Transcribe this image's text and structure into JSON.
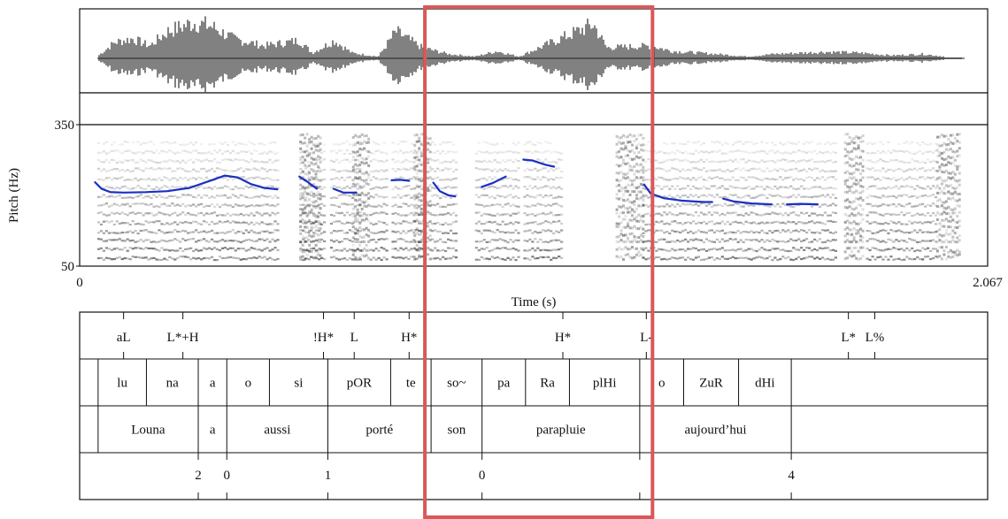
{
  "axes": {
    "pitch_label": "Pitch (Hz)",
    "pitch_max": "350",
    "pitch_min": "50",
    "time_label": "Time (s)",
    "time_start": "0",
    "time_end": "2.067"
  },
  "tones": [
    {
      "label": "aL",
      "t": 0.1
    },
    {
      "label": "L*+H",
      "t": 0.235
    },
    {
      "label": "!H*",
      "t": 0.555
    },
    {
      "label": "L",
      "t": 0.625
    },
    {
      "label": "H*",
      "t": 0.75
    },
    {
      "label": "H*",
      "t": 1.1
    },
    {
      "label": "L-",
      "t": 1.29
    },
    {
      "label": "L*",
      "t": 1.75
    },
    {
      "label": "L%",
      "t": 1.81
    }
  ],
  "syllables": [
    {
      "label": "lu",
      "start": 0.042,
      "end": 0.152
    },
    {
      "label": "na",
      "start": 0.152,
      "end": 0.27
    },
    {
      "label": "a",
      "start": 0.27,
      "end": 0.335
    },
    {
      "label": "o",
      "start": 0.335,
      "end": 0.432
    },
    {
      "label": "si",
      "start": 0.432,
      "end": 0.565
    },
    {
      "label": "pOR",
      "start": 0.565,
      "end": 0.708
    },
    {
      "label": "te",
      "start": 0.708,
      "end": 0.8
    },
    {
      "label": "so~",
      "start": 0.8,
      "end": 0.916
    },
    {
      "label": "pa",
      "start": 0.916,
      "end": 1.015
    },
    {
      "label": "Ra",
      "start": 1.015,
      "end": 1.115
    },
    {
      "label": "plHi",
      "start": 1.115,
      "end": 1.275
    },
    {
      "label": "o",
      "start": 1.275,
      "end": 1.375
    },
    {
      "label": "ZuR",
      "start": 1.375,
      "end": 1.5
    },
    {
      "label": "dHi",
      "start": 1.5,
      "end": 1.62
    }
  ],
  "words": [
    {
      "label": "Louna",
      "start": 0.042,
      "end": 0.27
    },
    {
      "label": "a",
      "start": 0.27,
      "end": 0.335
    },
    {
      "label": "aussi",
      "start": 0.335,
      "end": 0.565
    },
    {
      "label": "porté",
      "start": 0.565,
      "end": 0.8
    },
    {
      "label": "son",
      "start": 0.8,
      "end": 0.916
    },
    {
      "label": "parapluie",
      "start": 0.916,
      "end": 1.275
    },
    {
      "label": "aujourd’hui",
      "start": 1.275,
      "end": 1.62
    }
  ],
  "breaks": [
    {
      "label": "2",
      "t": 0.27
    },
    {
      "label": "0",
      "t": 0.335
    },
    {
      "label": "1",
      "t": 0.565
    },
    {
      "label": "0",
      "t": 0.916
    },
    {
      "label": "",
      "t": 1.275
    },
    {
      "label": "4",
      "t": 1.62
    }
  ],
  "pitch_segments": [
    [
      [
        0.035,
        228
      ],
      [
        0.05,
        214
      ],
      [
        0.07,
        207
      ],
      [
        0.1,
        206
      ],
      [
        0.15,
        207
      ],
      [
        0.2,
        209
      ],
      [
        0.25,
        216
      ],
      [
        0.3,
        232
      ],
      [
        0.33,
        242
      ],
      [
        0.36,
        238
      ],
      [
        0.39,
        224
      ],
      [
        0.42,
        216
      ],
      [
        0.45,
        213
      ]
    ],
    [
      [
        0.5,
        240
      ],
      [
        0.52,
        228
      ],
      [
        0.54,
        214
      ]
    ],
    [
      [
        0.578,
        214
      ],
      [
        0.6,
        206
      ],
      [
        0.63,
        206
      ]
    ],
    [
      [
        0.71,
        232
      ],
      [
        0.73,
        233
      ],
      [
        0.75,
        231
      ]
    ],
    [
      [
        0.805,
        227
      ],
      [
        0.82,
        209
      ],
      [
        0.84,
        200
      ],
      [
        0.855,
        198
      ]
    ],
    [
      [
        0.915,
        218
      ],
      [
        0.94,
        226
      ],
      [
        0.97,
        240
      ]
    ],
    [
      [
        1.01,
        276
      ],
      [
        1.03,
        274
      ],
      [
        1.06,
        265
      ],
      [
        1.08,
        261
      ]
    ],
    [
      [
        1.285,
        223
      ],
      [
        1.3,
        204
      ],
      [
        1.33,
        194
      ],
      [
        1.37,
        189
      ],
      [
        1.42,
        186
      ],
      [
        1.44,
        186
      ]
    ],
    [
      [
        1.465,
        193
      ],
      [
        1.49,
        187
      ],
      [
        1.53,
        183
      ],
      [
        1.575,
        181
      ]
    ],
    [
      [
        1.61,
        181
      ],
      [
        1.64,
        182
      ],
      [
        1.68,
        181
      ]
    ]
  ],
  "highlight": {
    "start": 0.8,
    "end": 1.29,
    "color": "#d9585a"
  }
}
